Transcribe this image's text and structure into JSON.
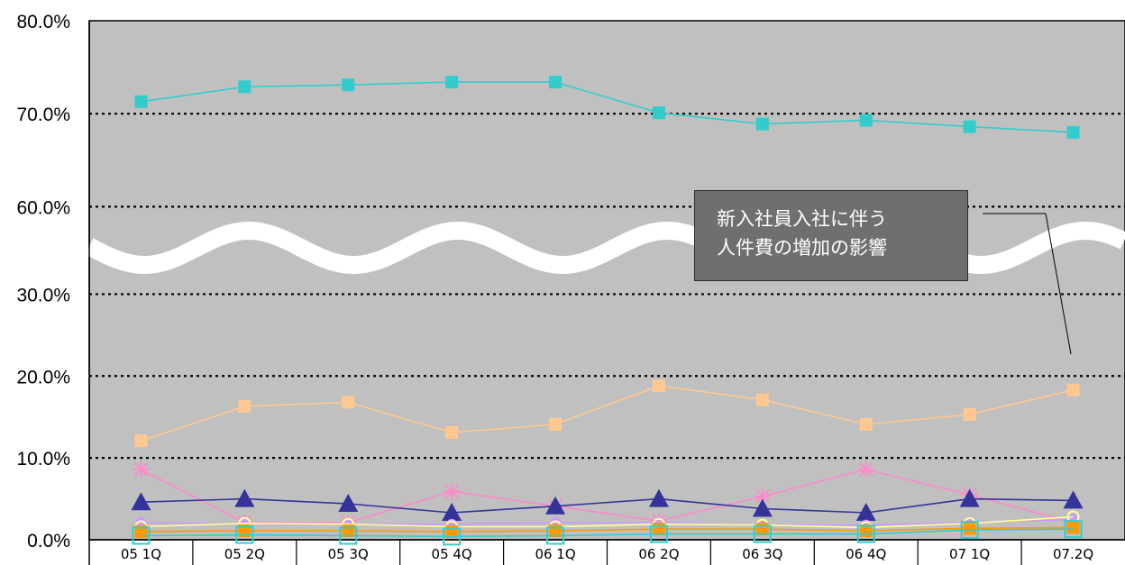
{
  "chart_data": {
    "type": "line",
    "categories": [
      "05 1Q",
      "05 2Q",
      "05 3Q",
      "05 4Q",
      "06 1Q",
      "06 2Q",
      "06 3Q",
      "06 4Q",
      "07 1Q",
      "07.2Q"
    ],
    "y_tick_labels": [
      "0.0%",
      "10.0%",
      "20.0%",
      "30.0%",
      "60.0%",
      "70.0%",
      "80.0%"
    ],
    "y_axis_break": [
      35,
      55
    ],
    "ylim": [
      0,
      80
    ],
    "grid": true,
    "annotation": {
      "lines": [
        "新入社員入社に伴う",
        "人件費の増加の影響"
      ]
    },
    "series": [
      {
        "values": [
          71.3,
          72.9,
          73.1,
          73.4,
          73.4,
          70.1,
          68.9,
          69.3,
          68.6,
          68.0
        ],
        "color": "#33CCCC",
        "marker": "square"
      },
      {
        "values": [
          12.1,
          16.3,
          16.8,
          13.1,
          14.1,
          18.8,
          17.1,
          14.1,
          15.3,
          18.3
        ],
        "color": "#FFC891",
        "marker": "square"
      },
      {
        "values": [
          8.6,
          2.1,
          2.1,
          5.9,
          4.1,
          2.3,
          5.3,
          8.6,
          5.5,
          2.1
        ],
        "color": "#FF88CC",
        "marker": "star"
      },
      {
        "values": [
          4.6,
          5.0,
          4.4,
          3.3,
          4.1,
          5.0,
          3.8,
          3.3,
          5.0,
          4.8
        ],
        "color": "#333399",
        "marker": "triangle"
      },
      {
        "values": [
          2.1,
          1.9,
          1.9,
          1.9,
          2.1,
          2.1,
          1.8,
          1.8,
          2.1,
          2.5
        ],
        "color": "#CC99FF",
        "marker": "circle"
      },
      {
        "values": [
          1.6,
          2.0,
          1.9,
          1.6,
          1.6,
          1.9,
          1.8,
          1.5,
          2.0,
          2.8
        ],
        "color": "#FFFF99",
        "marker": "circle-hollow"
      },
      {
        "values": [
          1.0,
          1.1,
          1.1,
          1.0,
          1.1,
          1.3,
          1.3,
          1.1,
          1.4,
          1.5
        ],
        "color": "#FF9900",
        "marker": "square"
      },
      {
        "values": [
          0.5,
          0.6,
          0.5,
          0.4,
          0.5,
          0.7,
          0.7,
          0.7,
          1.2,
          1.3
        ],
        "color": "#33CCCC",
        "marker": "square-hollow"
      }
    ]
  }
}
